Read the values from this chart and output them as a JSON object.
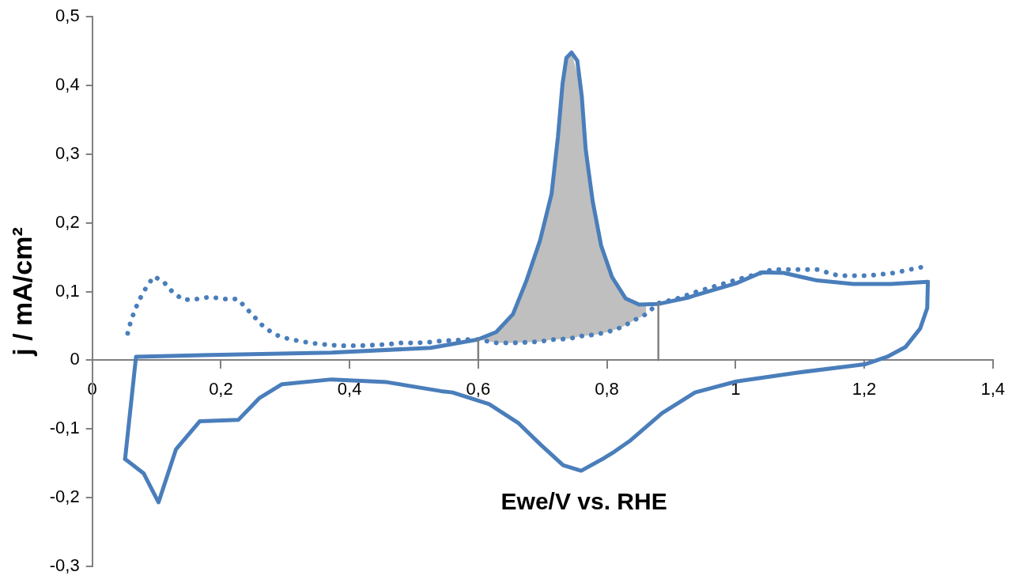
{
  "chart_data": {
    "type": "line",
    "xlabel": "Ewe/V vs. RHE",
    "ylabel": "j / mA/cm²",
    "xlim": [
      0,
      1.4
    ],
    "ylim": [
      -0.3,
      0.5
    ],
    "xticks": [
      0,
      {
        "value": 0.2,
        "label": "0,2"
      },
      {
        "value": 0.4,
        "label": "0,4"
      },
      {
        "value": 0.6,
        "label": "0,6"
      },
      {
        "value": 0.8,
        "label": "0,8"
      },
      1,
      {
        "value": 1.2,
        "label": "1,2"
      },
      {
        "value": 1.4,
        "label": "1,4"
      }
    ],
    "yticks": [
      {
        "value": -0.3,
        "label": "-0,3"
      },
      {
        "value": -0.2,
        "label": "-0,2"
      },
      {
        "value": -0.1,
        "label": "-0,1"
      },
      0,
      {
        "value": 0.1,
        "label": "0,1"
      },
      {
        "value": 0.2,
        "label": "0,2"
      },
      {
        "value": 0.3,
        "label": "0,3"
      },
      {
        "value": 0.4,
        "label": "0,4"
      },
      {
        "value": 0.5,
        "label": "0,5"
      }
    ],
    "grid": false,
    "legend": false,
    "marker": "none",
    "series": [
      {
        "type": "line",
        "color": "#808080",
        "x": [
          0.6,
          0.6
        ],
        "values": [
          0,
          0.03
        ],
        "line_style": "solid"
      },
      {
        "type": "line",
        "color": "#808080",
        "x": [
          0.88,
          0.88
        ],
        "values": [
          0,
          0.082
        ],
        "line_style": "solid"
      },
      {
        "type": "line",
        "color": "#4a7ebb",
        "line_style": "dotted",
        "x": [
          0.055,
          0.06,
          0.067,
          0.075,
          0.085,
          0.096,
          0.111,
          0.124,
          0.141,
          0.162,
          0.183,
          0.205,
          0.226,
          0.24,
          0.254,
          0.267,
          0.285,
          0.305,
          0.327,
          0.349,
          0.372,
          0.393,
          0.414,
          0.436,
          0.457,
          0.479,
          0.5,
          0.521,
          0.543,
          0.564,
          0.585,
          0.6,
          0.63,
          0.65,
          0.673,
          0.695,
          0.716,
          0.737,
          0.745,
          0.759,
          0.781,
          0.801,
          0.823,
          0.842,
          0.861,
          0.88,
          0.91,
          0.937,
          0.983,
          1.058,
          1.127,
          1.16,
          1.206,
          1.246,
          1.292
        ],
        "values": [
          0.039,
          0.057,
          0.075,
          0.091,
          0.108,
          0.122,
          0.114,
          0.1,
          0.088,
          0.089,
          0.092,
          0.089,
          0.089,
          0.075,
          0.061,
          0.048,
          0.037,
          0.031,
          0.027,
          0.024,
          0.022,
          0.021,
          0.021,
          0.022,
          0.023,
          0.025,
          0.025,
          0.026,
          0.028,
          0.029,
          0.03,
          0.03,
          0.025,
          0.025,
          0.026,
          0.027,
          0.03,
          0.031,
          0.032,
          0.035,
          0.037,
          0.041,
          0.048,
          0.058,
          0.067,
          0.083,
          0.09,
          0.099,
          0.112,
          0.132,
          0.132,
          0.123,
          0.123,
          0.127,
          0.136
        ],
        "lower": [
          null,
          null,
          null,
          null,
          null,
          null,
          null,
          null,
          null,
          null,
          null,
          null,
          null,
          null,
          null,
          null,
          null,
          null,
          null,
          null,
          null,
          null,
          null,
          null,
          null,
          null,
          null,
          null,
          null,
          null,
          null,
          0.03,
          0.025,
          0.025,
          0.026,
          0.027,
          0.03,
          0.031,
          0.032,
          0.035,
          0.037,
          0.041,
          0.048,
          0.058,
          0.067,
          null,
          null,
          null,
          null,
          null,
          null,
          null,
          null,
          null,
          null
        ],
        "upper": [
          null,
          null,
          null,
          null,
          null,
          null,
          null,
          null,
          null,
          null,
          null,
          null,
          null,
          null,
          null,
          null,
          null,
          null,
          null,
          null,
          null,
          null,
          null,
          null,
          null,
          null,
          null,
          null,
          null,
          null,
          null,
          0.03,
          0.043,
          0.062,
          0.111,
          0.171,
          0.25,
          0.44,
          0.448,
          0.4,
          0.215,
          0.14,
          0.098,
          0.084,
          0.081,
          null,
          null,
          null,
          null,
          null,
          null,
          null,
          null,
          null,
          null
        ]
      },
      {
        "type": "line",
        "color": "#4a7ebb",
        "line_style": "solid",
        "x": [
          0.051,
          0.068,
          0.158,
          0.372,
          0.526,
          0.599,
          0.628,
          0.654,
          0.675,
          0.696,
          0.714,
          0.724,
          0.731,
          0.737,
          0.745,
          0.754,
          0.761,
          0.767,
          0.778,
          0.791,
          0.808,
          0.829,
          0.85,
          0.881,
          0.926,
          0.936,
          1.001,
          1.041,
          1.075,
          1.127,
          1.183,
          1.241,
          1.299
        ],
        "values": [
          -0.144,
          0.005,
          0.007,
          0.011,
          0.018,
          0.03,
          0.041,
          0.067,
          0.116,
          0.174,
          0.242,
          0.326,
          0.402,
          0.44,
          0.448,
          0.436,
          0.384,
          0.307,
          0.231,
          0.167,
          0.121,
          0.09,
          0.081,
          0.082,
          0.091,
          0.094,
          0.112,
          0.128,
          0.127,
          0.116,
          0.111,
          0.111,
          0.114
        ]
      },
      {
        "type": "line",
        "color": "#4a7ebb",
        "line_style": "solid",
        "x": [
          1.299,
          1.298,
          1.287,
          1.264,
          1.236,
          1.201,
          1.097,
          1.001,
          0.937,
          0.886,
          0.835,
          0.812,
          0.795,
          0.76,
          0.732,
          0.697,
          0.663,
          0.617,
          0.56,
          0.542,
          0.458,
          0.372,
          0.295,
          0.26,
          0.227,
          0.167,
          0.13,
          0.103,
          0.08,
          0.051
        ],
        "values": [
          0.114,
          0.076,
          0.046,
          0.019,
          0.005,
          -0.006,
          -0.018,
          -0.031,
          -0.047,
          -0.077,
          -0.118,
          -0.133,
          -0.143,
          -0.161,
          -0.153,
          -0.123,
          -0.092,
          -0.064,
          -0.047,
          -0.045,
          -0.032,
          -0.028,
          -0.035,
          -0.055,
          -0.087,
          -0.089,
          -0.13,
          -0.207,
          -0.165,
          -0.144
        ]
      }
    ]
  }
}
